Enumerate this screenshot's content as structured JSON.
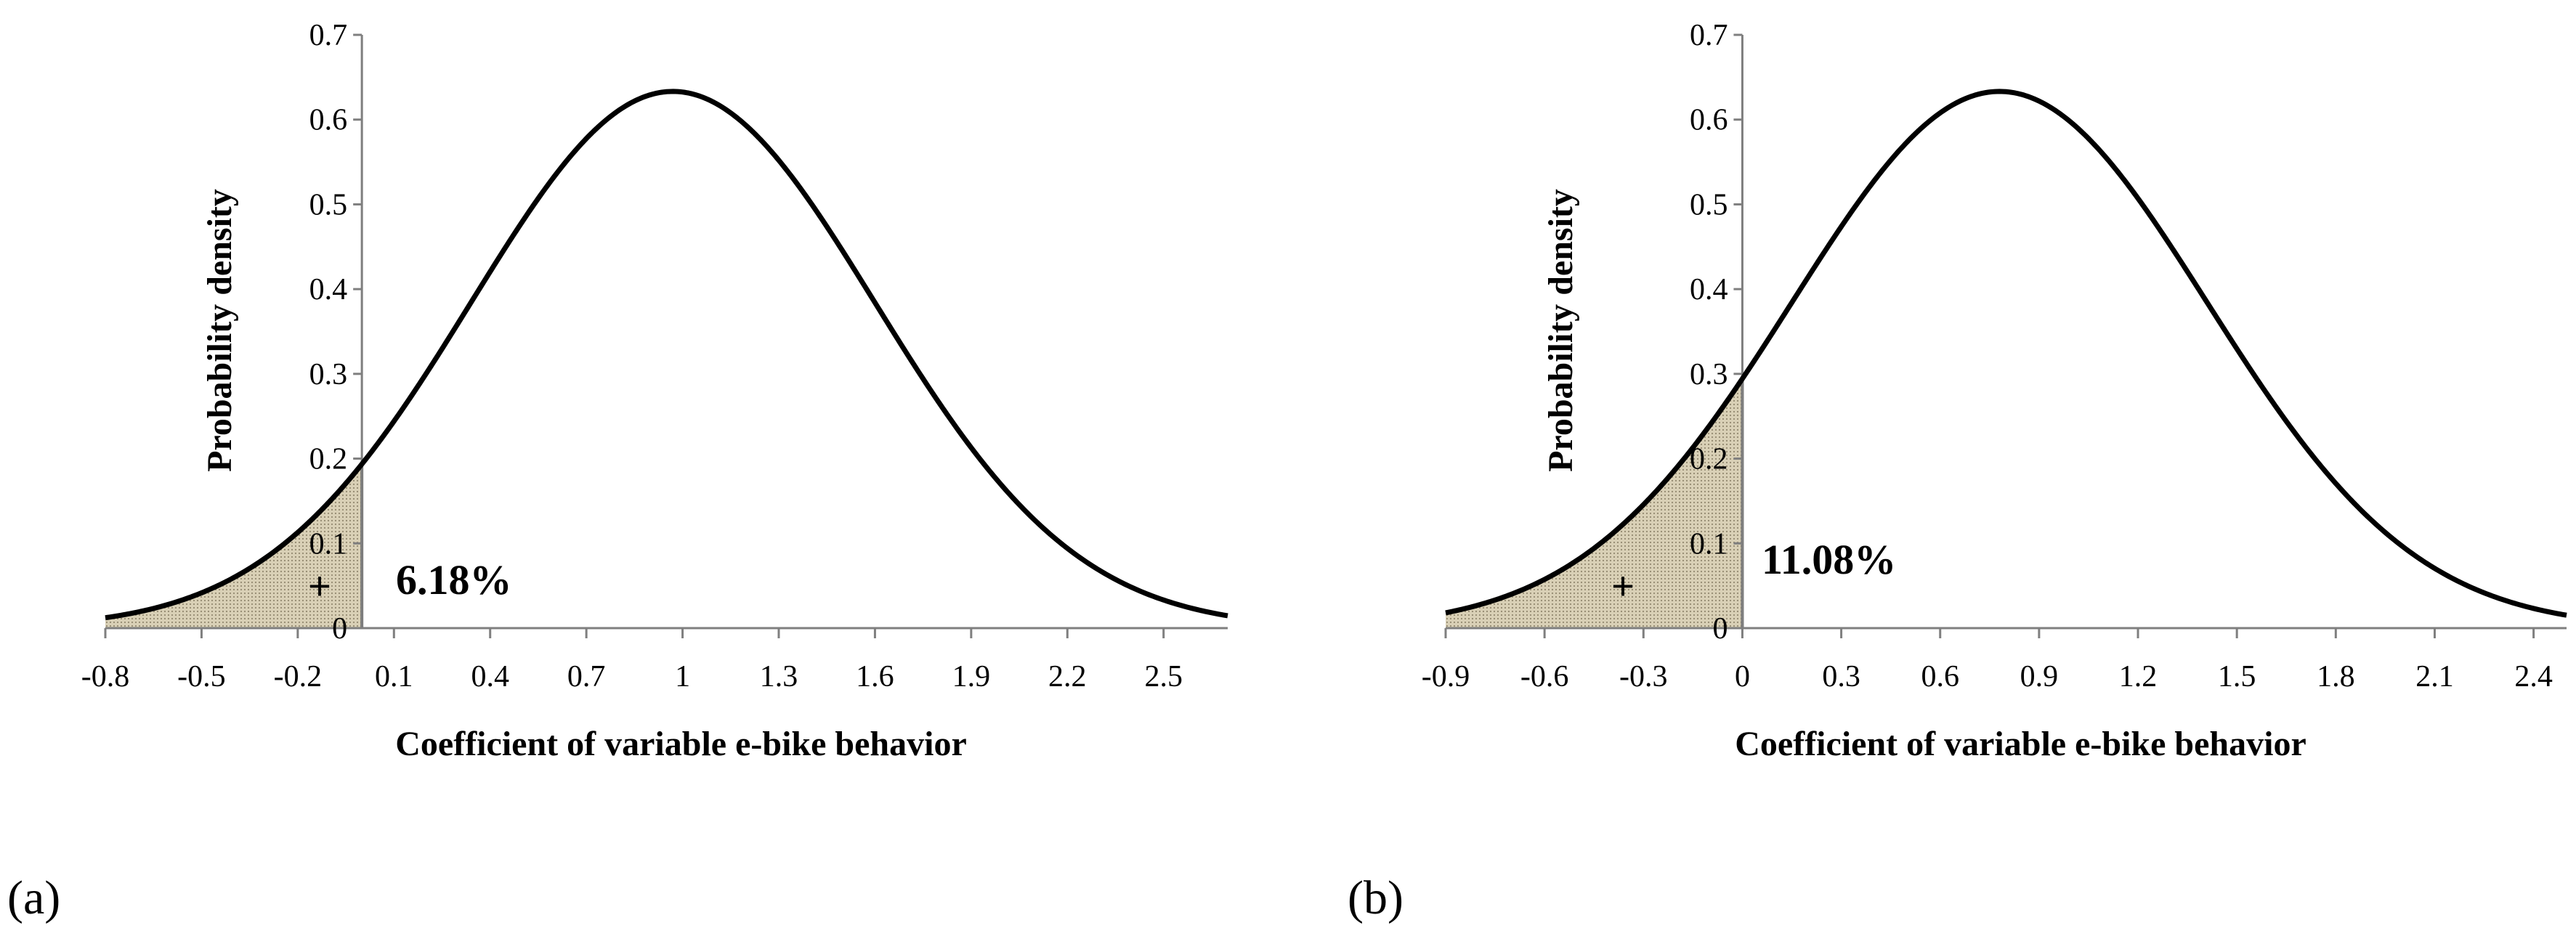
{
  "chart_data": [
    {
      "type": "area",
      "panel_label": "(a)",
      "distribution": "normal",
      "mean": 0.97,
      "sd": 0.63,
      "xlabel": "Coefficient of variable e-bike behavior",
      "ylabel": "Probability density",
      "xlim": [
        -0.8,
        2.7
      ],
      "ylim": [
        0,
        0.7
      ],
      "x_ticks": [
        "-0.8",
        "-0.5",
        "-0.2",
        "0.1",
        "0.4",
        "0.7",
        "1",
        "1.3",
        "1.6",
        "1.9",
        "2.2",
        "2.5"
      ],
      "x_tick_values": [
        -0.8,
        -0.5,
        -0.2,
        0.1,
        0.4,
        0.7,
        1.0,
        1.3,
        1.6,
        1.9,
        2.2,
        2.5
      ],
      "y_ticks": [
        "0",
        "0.1",
        "0.2",
        "0.3",
        "0.4",
        "0.5",
        "0.6",
        "0.7"
      ],
      "y_tick_values": [
        0,
        0.1,
        0.2,
        0.3,
        0.4,
        0.5,
        0.6,
        0.7
      ],
      "shaded_region": {
        "from": -0.8,
        "to": 0,
        "sign": "+"
      },
      "annotation": "6.18%"
    },
    {
      "type": "area",
      "panel_label": "(b)",
      "distribution": "normal",
      "mean": 0.78,
      "sd": 0.63,
      "xlabel": "Coefficient of variable e-bike behavior",
      "ylabel": "Probability density",
      "xlim": [
        -0.9,
        2.5
      ],
      "ylim": [
        0,
        0.7
      ],
      "x_ticks": [
        "-0.9",
        "-0.6",
        "-0.3",
        "0",
        "0.3",
        "0.6",
        "0.9",
        "1.2",
        "1.5",
        "1.8",
        "2.1",
        "2.4"
      ],
      "x_tick_values": [
        -0.9,
        -0.6,
        -0.3,
        0,
        0.3,
        0.6,
        0.9,
        1.2,
        1.5,
        1.8,
        2.1,
        2.4
      ],
      "y_ticks": [
        "0",
        "0.1",
        "0.2",
        "0.3",
        "0.4",
        "0.5",
        "0.6",
        "0.7"
      ],
      "y_tick_values": [
        0,
        0.1,
        0.2,
        0.3,
        0.4,
        0.5,
        0.6,
        0.7
      ],
      "shaded_region": {
        "from": -0.9,
        "to": 0,
        "sign": "+"
      },
      "annotation": "11.08%"
    }
  ],
  "colors": {
    "curve": "#000000",
    "shade_fill": "#d9d0b6",
    "shade_dots": "#9a9077",
    "axis": "#7f7f7f",
    "divider": "#6e6e6e"
  }
}
